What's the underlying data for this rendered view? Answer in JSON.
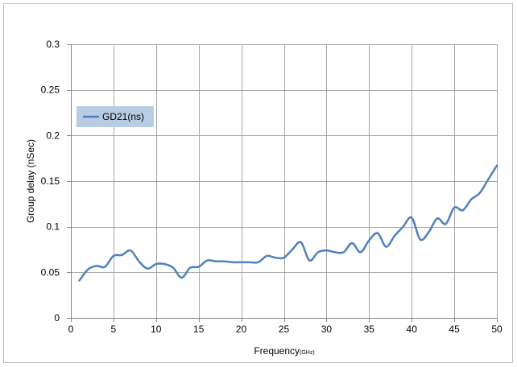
{
  "chart_data": {
    "type": "line",
    "xlabel": "Frequency",
    "xlabel_unit": "(GHz)",
    "ylabel": "Group delay (nSec)",
    "xlim": [
      0,
      50
    ],
    "ylim": [
      0,
      0.3
    ],
    "xticks": [
      0,
      5,
      10,
      15,
      20,
      25,
      30,
      35,
      40,
      45,
      50
    ],
    "yticks": [
      0,
      0.05,
      0.1,
      0.15,
      0.2,
      0.25,
      0.3
    ],
    "ytick_labels": [
      "0",
      "0.05",
      "0.1",
      "0.15",
      "0.2",
      "0.25",
      "0.3"
    ],
    "grid": true,
    "legend_position": "left",
    "series": [
      {
        "name": "GD21(ns)",
        "color": "#4f81bd",
        "x": [
          1,
          2,
          3,
          4,
          5,
          6,
          7,
          8,
          9,
          10,
          11,
          12,
          13,
          14,
          15,
          16,
          17,
          18,
          19,
          20,
          21,
          22,
          23,
          24,
          25,
          26,
          27,
          28,
          29,
          30,
          31,
          32,
          33,
          34,
          35,
          36,
          37,
          38,
          39,
          40,
          41,
          42,
          43,
          44,
          45,
          46,
          47,
          48,
          49,
          50
        ],
        "values": [
          0.041,
          0.053,
          0.057,
          0.056,
          0.068,
          0.069,
          0.074,
          0.062,
          0.054,
          0.059,
          0.059,
          0.055,
          0.044,
          0.055,
          0.056,
          0.063,
          0.062,
          0.062,
          0.061,
          0.061,
          0.061,
          0.061,
          0.068,
          0.066,
          0.066,
          0.075,
          0.083,
          0.063,
          0.072,
          0.074,
          0.072,
          0.072,
          0.082,
          0.072,
          0.085,
          0.093,
          0.078,
          0.09,
          0.1,
          0.11,
          0.086,
          0.094,
          0.109,
          0.103,
          0.121,
          0.118,
          0.13,
          0.137,
          0.152,
          0.167
        ]
      }
    ]
  }
}
